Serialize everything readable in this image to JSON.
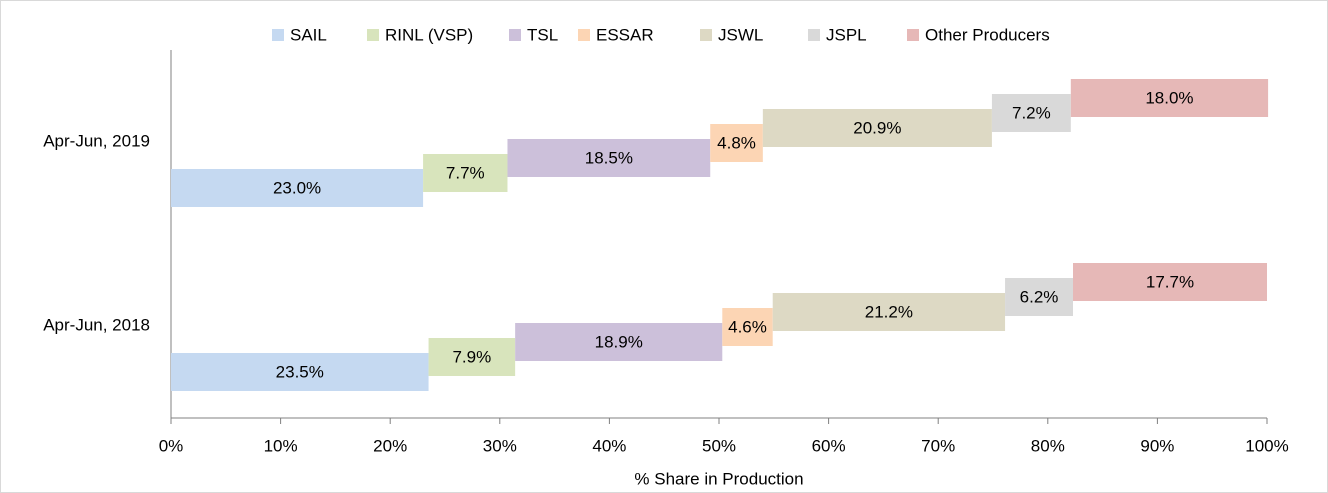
{
  "chart_data": {
    "type": "waterfall-bar",
    "categories": [
      "Apr-Jun, 2019",
      "Apr-Jun, 2018"
    ],
    "series": [
      {
        "name": "SAIL",
        "color": "#c5d9f1",
        "values": [
          23.0,
          23.5
        ],
        "value_labels": [
          "23.0%",
          "23.5%"
        ]
      },
      {
        "name": "RINL (VSP)",
        "color": "#d8e4bc",
        "values": [
          7.7,
          7.9
        ],
        "value_labels": [
          "7.7%",
          "7.9%"
        ]
      },
      {
        "name": "TSL",
        "color": "#ccc0da",
        "values": [
          18.5,
          18.9
        ],
        "value_labels": [
          "18.5%",
          "18.9%"
        ]
      },
      {
        "name": "ESSAR",
        "color": "#fcd5b4",
        "values": [
          4.8,
          4.6
        ],
        "value_labels": [
          "4.8%",
          "4.6%"
        ]
      },
      {
        "name": "JSWL",
        "color": "#ddd9c4",
        "values": [
          20.9,
          21.2
        ],
        "value_labels": [
          "20.9%",
          "21.2%"
        ]
      },
      {
        "name": "JSPL",
        "color": "#d9d9d9",
        "values": [
          7.2,
          6.2
        ],
        "value_labels": [
          "7.2%",
          "6.2%"
        ]
      },
      {
        "name": "Other Producers",
        "color": "#e6b8b7",
        "values": [
          18.0,
          17.7
        ],
        "value_labels": [
          "18.0%",
          "17.7%"
        ]
      }
    ],
    "xlabel": "% Share in Production",
    "xlim": [
      0,
      100
    ],
    "xticks": [
      {
        "value": 0,
        "label": "0%"
      },
      {
        "value": 10,
        "label": "10%"
      },
      {
        "value": 20,
        "label": "20%"
      },
      {
        "value": 30,
        "label": "30%"
      },
      {
        "value": 40,
        "label": "40%"
      },
      {
        "value": 50,
        "label": "50%"
      },
      {
        "value": 60,
        "label": "60%"
      },
      {
        "value": 70,
        "label": "70%"
      },
      {
        "value": 80,
        "label": "80%"
      },
      {
        "value": 90,
        "label": "90%"
      },
      {
        "value": 100,
        "label": "100%"
      }
    ],
    "legend": "top"
  }
}
